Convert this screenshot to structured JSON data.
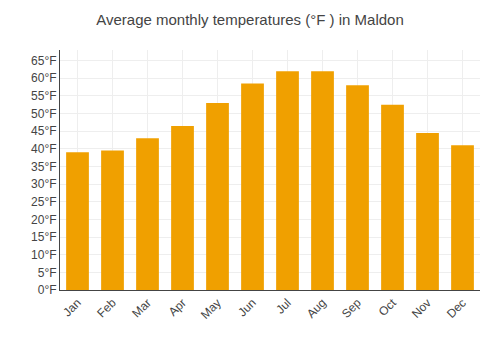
{
  "chart_data": {
    "type": "bar",
    "title": "Average monthly temperatures (°F ) in Maldon",
    "categories": [
      "Jan",
      "Feb",
      "Mar",
      "Apr",
      "May",
      "Jun",
      "Jul",
      "Aug",
      "Sep",
      "Oct",
      "Nov",
      "Dec"
    ],
    "values": [
      39.0,
      39.5,
      43.0,
      46.5,
      53.0,
      58.5,
      62.0,
      62.0,
      58.0,
      52.5,
      44.5,
      41.0
    ],
    "color": "#F0A000",
    "ylim": [
      0,
      68
    ],
    "yticks": [
      {
        "value": 0,
        "label": "0°F"
      },
      {
        "value": 5,
        "label": "5°F"
      },
      {
        "value": 10,
        "label": "10°F"
      },
      {
        "value": 15,
        "label": "15°F"
      },
      {
        "value": 20,
        "label": "20°F"
      },
      {
        "value": 25,
        "label": "25°F"
      },
      {
        "value": 30,
        "label": "30°F"
      },
      {
        "value": 35,
        "label": "35°F"
      },
      {
        "value": 40,
        "label": "40°F"
      },
      {
        "value": 45,
        "label": "45°F"
      },
      {
        "value": 50,
        "label": "50°F"
      },
      {
        "value": 55,
        "label": "55°F"
      },
      {
        "value": 60,
        "label": "60°F"
      },
      {
        "value": 65,
        "label": "65°F"
      }
    ],
    "grid": true
  }
}
